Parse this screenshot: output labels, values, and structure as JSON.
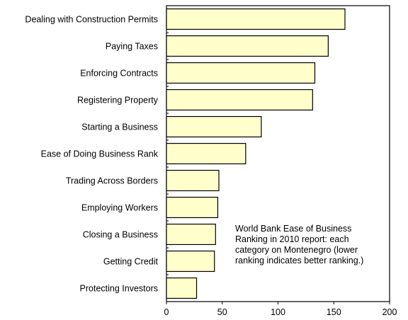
{
  "chart_data": {
    "type": "bar",
    "orientation": "horizontal",
    "categories": [
      "Dealing with Construction Permits",
      "Paying Taxes",
      "Enforcing Contracts",
      "Registering Property",
      "Starting a Business",
      "Ease of Doing Business Rank",
      "Trading Across Borders",
      "Employing Workers",
      "Closing a Business",
      "Getting Credit",
      "Protecting Investors"
    ],
    "values": [
      160,
      145,
      133,
      131,
      85,
      71,
      47,
      46,
      44,
      43,
      27
    ],
    "xlim": [
      0,
      200
    ],
    "xticks": [
      "0",
      "50",
      "100",
      "150",
      "200"
    ],
    "bar_color": "#ffffcc",
    "bar_stroke": "#000000",
    "grid": false,
    "annotation": "World Bank Ease of Business Ranking in 2010 report: each category on Montenegro (lower ranking indicates better ranking.)"
  }
}
